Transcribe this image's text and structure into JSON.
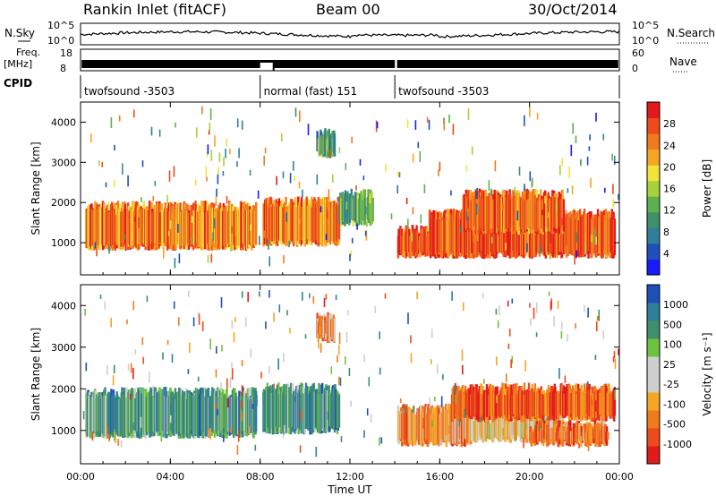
{
  "header": {
    "station": "Rankin Inlet (fitACF)",
    "beam": "Beam 00",
    "date": "30/Oct/2014"
  },
  "strip": {
    "nsky_label": "N.Sky",
    "nsearch_label": "N.Search",
    "freq_label_1": "Freq.",
    "freq_label_2": "[MHz]",
    "nave_label": "Nave",
    "cpid_label": "CPID",
    "noise_ticks": [
      "10^5",
      "10^0"
    ],
    "freq_ticks": [
      "18",
      "8"
    ],
    "nave_ticks": [
      "60",
      "0"
    ],
    "cpid_segments": [
      {
        "label": "twofsound -3503",
        "start_h": 0,
        "end_h": 8
      },
      {
        "label": "normal (fast) 151",
        "start_h": 8,
        "end_h": 14
      },
      {
        "label": "twofsound -3503",
        "start_h": 14,
        "end_h": 24
      }
    ]
  },
  "colors": {
    "power": [
      "#1a1aff",
      "#1f4fb8",
      "#2e7f9a",
      "#3f8f6c",
      "#5fb04f",
      "#a6d13a",
      "#f2e23a",
      "#f5a623",
      "#f07b1e",
      "#ee4b1c",
      "#e31a1c"
    ],
    "velocity": [
      "#e31a1c",
      "#ee4b1c",
      "#f07b1e",
      "#f5a623",
      "#cfcfcf",
      "#cfcfcf",
      "#6fc23f",
      "#3f8f6c",
      "#2e7f9a",
      "#1f4fb8"
    ]
  },
  "chart_data": [
    {
      "type": "heatmap",
      "name": "power",
      "ylabel": "Slant Range [km]",
      "xlabel": "",
      "x_ticks": [
        "00:00",
        "04:00",
        "08:00",
        "12:00",
        "16:00",
        "20:00",
        "00:00"
      ],
      "xlim_hours": [
        0,
        24
      ],
      "ylim": [
        200,
        4500
      ],
      "y_ticks": [
        1000,
        2000,
        3000,
        4000
      ],
      "colorbar": {
        "label": "Power [dB]",
        "ticks": [
          "28",
          "24",
          "20",
          "16",
          "12",
          "8",
          "4"
        ],
        "range": [
          0,
          30
        ]
      },
      "bands": [
        {
          "t0": 0.2,
          "t1": 7.8,
          "r0": 900,
          "r1": 1900,
          "level": 0.8
        },
        {
          "t0": 8.1,
          "t1": 11.5,
          "r0": 1000,
          "r1": 2000,
          "level": 0.8
        },
        {
          "t0": 11.5,
          "t1": 13.0,
          "r0": 1500,
          "r1": 2200,
          "level": 0.35
        },
        {
          "t0": 14.1,
          "t1": 18.5,
          "r0": 700,
          "r1": 1300,
          "level": 0.9
        },
        {
          "t0": 15.5,
          "t1": 23.8,
          "r0": 700,
          "r1": 1700,
          "level": 0.9
        },
        {
          "t0": 17.0,
          "t1": 21.5,
          "r0": 1300,
          "r1": 2200,
          "level": 0.85
        },
        {
          "t0": 10.5,
          "t1": 11.3,
          "r0": 3200,
          "r1": 3700,
          "level": 0.35
        }
      ]
    },
    {
      "type": "heatmap",
      "name": "velocity",
      "ylabel": "Slant Range [km]",
      "xlabel": "Time UT",
      "x_ticks": [
        "00:00",
        "04:00",
        "08:00",
        "12:00",
        "16:00",
        "20:00",
        "00:00"
      ],
      "xlim_hours": [
        0,
        24
      ],
      "ylim": [
        200,
        4500
      ],
      "y_ticks": [
        1000,
        2000,
        3000,
        4000
      ],
      "colorbar": {
        "label": "Velocity [m s⁻¹]",
        "ticks": [
          "1000",
          "500",
          "100",
          "25",
          "-25",
          "-100",
          "-500",
          "-1000"
        ],
        "range": [
          -1000,
          1000
        ]
      },
      "bands": [
        {
          "t0": 0.2,
          "t1": 7.8,
          "r0": 900,
          "r1": 1900,
          "level": 0.75
        },
        {
          "t0": 8.1,
          "t1": 11.5,
          "r0": 1000,
          "r1": 2000,
          "level": 0.78
        },
        {
          "t0": 10.5,
          "t1": 11.3,
          "r0": 3200,
          "r1": 3700,
          "level": 0.3
        },
        {
          "t0": 14.1,
          "t1": 17.5,
          "r0": 700,
          "r1": 1500,
          "level": 0.25
        },
        {
          "t0": 17.5,
          "t1": 21.5,
          "r0": 800,
          "r1": 1300,
          "level": 0.45
        },
        {
          "t0": 16.5,
          "t1": 23.8,
          "r0": 1300,
          "r1": 2000,
          "level": 0.15
        },
        {
          "t0": 20.0,
          "t1": 23.5,
          "r0": 700,
          "r1": 1100,
          "level": 0.2
        }
      ]
    }
  ]
}
